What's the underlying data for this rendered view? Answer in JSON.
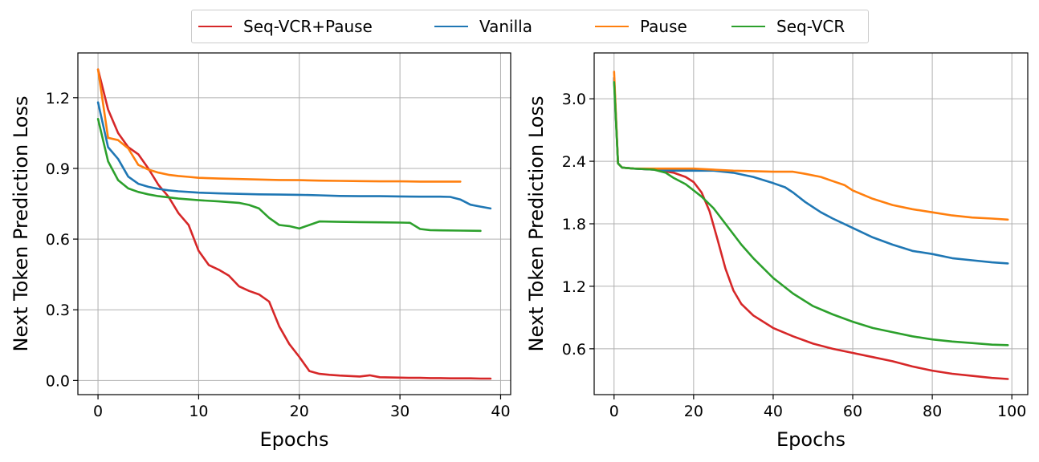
{
  "legend": [
    {
      "label": "Seq-VCR+Pause",
      "color": "#d62728"
    },
    {
      "label": "Vanilla",
      "color": "#1f77b4"
    },
    {
      "label": "Pause",
      "color": "#ff7f0e"
    },
    {
      "label": "Seq-VCR",
      "color": "#2ca02c"
    }
  ],
  "chart_data": [
    {
      "type": "line",
      "xlabel": "Epochs",
      "ylabel": "Next Token Prediction Loss",
      "xlim": [
        -2,
        41
      ],
      "ylim": [
        -0.06,
        1.39
      ],
      "xticks": [
        0,
        10,
        20,
        30,
        40
      ],
      "yticks": [
        0.0,
        0.3,
        0.6,
        0.9,
        1.2
      ],
      "ytick_labels": [
        "0.0",
        "0.3",
        "0.6",
        "0.9",
        "1.2"
      ],
      "grid": true,
      "series": [
        {
          "name": "Seq-VCR+Pause",
          "color": "#d62728",
          "x": [
            0,
            1,
            2,
            3,
            4,
            5,
            6,
            7,
            8,
            9,
            10,
            11,
            12,
            13,
            14,
            15,
            16,
            17,
            18,
            19,
            20,
            21,
            22,
            23,
            24,
            25,
            26,
            27,
            28,
            29,
            30,
            31,
            32,
            33,
            34,
            35,
            36,
            37,
            38,
            39
          ],
          "y": [
            1.32,
            1.15,
            1.05,
            0.99,
            0.96,
            0.9,
            0.83,
            0.78,
            0.71,
            0.66,
            0.55,
            0.49,
            0.47,
            0.445,
            0.4,
            0.38,
            0.365,
            0.335,
            0.23,
            0.155,
            0.1,
            0.04,
            0.028,
            0.024,
            0.021,
            0.019,
            0.017,
            0.022,
            0.014,
            0.013,
            0.012,
            0.011,
            0.011,
            0.01,
            0.01,
            0.009,
            0.009,
            0.009,
            0.008,
            0.008
          ]
        },
        {
          "name": "Vanilla",
          "color": "#1f77b4",
          "x": [
            0,
            1,
            2,
            3,
            4,
            5,
            6,
            7,
            8,
            9,
            10,
            12,
            14,
            16,
            18,
            20,
            22,
            24,
            26,
            28,
            30,
            32,
            34,
            35,
            36,
            37,
            38,
            39
          ],
          "y": [
            1.18,
            0.99,
            0.94,
            0.865,
            0.835,
            0.822,
            0.813,
            0.807,
            0.803,
            0.8,
            0.797,
            0.794,
            0.792,
            0.79,
            0.789,
            0.788,
            0.786,
            0.783,
            0.782,
            0.782,
            0.781,
            0.78,
            0.78,
            0.779,
            0.768,
            0.746,
            0.738,
            0.73
          ]
        },
        {
          "name": "Pause",
          "color": "#ff7f0e",
          "x": [
            0,
            1,
            2,
            3,
            4,
            5,
            6,
            7,
            8,
            9,
            10,
            12,
            14,
            16,
            18,
            20,
            22,
            24,
            26,
            28,
            30,
            32,
            34,
            36
          ],
          "y": [
            1.32,
            1.03,
            1.02,
            0.985,
            0.915,
            0.895,
            0.882,
            0.873,
            0.868,
            0.864,
            0.86,
            0.857,
            0.855,
            0.853,
            0.851,
            0.85,
            0.848,
            0.847,
            0.846,
            0.845,
            0.845,
            0.844,
            0.844,
            0.844
          ]
        },
        {
          "name": "Seq-VCR",
          "color": "#2ca02c",
          "x": [
            0,
            1,
            2,
            3,
            4,
            5,
            6,
            7,
            8,
            10,
            12,
            14,
            15,
            16,
            17,
            18,
            19,
            20,
            21,
            22,
            24,
            26,
            28,
            30,
            31,
            32,
            33,
            34,
            36,
            38
          ],
          "y": [
            1.11,
            0.93,
            0.85,
            0.815,
            0.8,
            0.79,
            0.782,
            0.777,
            0.772,
            0.765,
            0.76,
            0.754,
            0.745,
            0.73,
            0.69,
            0.66,
            0.655,
            0.645,
            0.66,
            0.675,
            0.673,
            0.672,
            0.671,
            0.67,
            0.669,
            0.643,
            0.638,
            0.637,
            0.636,
            0.635
          ]
        }
      ]
    },
    {
      "type": "line",
      "xlabel": "Epochs",
      "ylabel": "Next Token Prediction Loss",
      "xlim": [
        -5,
        104
      ],
      "ylim": [
        0.16,
        3.44
      ],
      "xticks": [
        0,
        20,
        40,
        60,
        80,
        100
      ],
      "yticks": [
        0.6,
        1.2,
        1.8,
        2.4,
        3.0
      ],
      "ytick_labels": [
        "0.6",
        "1.2",
        "1.8",
        "2.4",
        "3.0"
      ],
      "grid": true,
      "series": [
        {
          "name": "Seq-VCR+Pause",
          "color": "#d62728",
          "x": [
            0,
            1,
            2,
            5,
            10,
            15,
            18,
            20,
            22,
            24,
            26,
            28,
            30,
            32,
            35,
            40,
            45,
            50,
            55,
            60,
            65,
            70,
            75,
            80,
            85,
            90,
            95,
            99
          ],
          "y": [
            3.2,
            2.38,
            2.34,
            2.33,
            2.32,
            2.29,
            2.25,
            2.2,
            2.1,
            1.92,
            1.65,
            1.37,
            1.16,
            1.03,
            0.92,
            0.8,
            0.72,
            0.65,
            0.6,
            0.56,
            0.52,
            0.48,
            0.43,
            0.39,
            0.36,
            0.34,
            0.32,
            0.31
          ]
        },
        {
          "name": "Vanilla",
          "color": "#1f77b4",
          "x": [
            0,
            1,
            2,
            5,
            10,
            15,
            20,
            25,
            30,
            35,
            40,
            43,
            45,
            48,
            52,
            55,
            60,
            65,
            70,
            75,
            80,
            85,
            90,
            95,
            99
          ],
          "y": [
            3.2,
            2.38,
            2.34,
            2.33,
            2.32,
            2.31,
            2.31,
            2.31,
            2.29,
            2.25,
            2.19,
            2.15,
            2.1,
            2.01,
            1.91,
            1.85,
            1.76,
            1.67,
            1.6,
            1.54,
            1.51,
            1.47,
            1.45,
            1.43,
            1.42
          ]
        },
        {
          "name": "Pause",
          "color": "#ff7f0e",
          "x": [
            0,
            1,
            2,
            5,
            10,
            20,
            30,
            40,
            45,
            48,
            52,
            55,
            58,
            60,
            65,
            70,
            75,
            80,
            85,
            90,
            95,
            99
          ],
          "y": [
            3.26,
            2.38,
            2.34,
            2.33,
            2.33,
            2.33,
            2.31,
            2.3,
            2.3,
            2.28,
            2.25,
            2.21,
            2.17,
            2.12,
            2.04,
            1.98,
            1.94,
            1.91,
            1.88,
            1.86,
            1.85,
            1.84
          ]
        },
        {
          "name": "Seq-VCR",
          "color": "#2ca02c",
          "x": [
            0,
            1,
            2,
            5,
            10,
            13,
            15,
            18,
            20,
            22,
            25,
            28,
            30,
            32,
            35,
            40,
            45,
            50,
            55,
            60,
            65,
            70,
            75,
            80,
            85,
            90,
            95,
            99
          ],
          "y": [
            3.16,
            2.38,
            2.34,
            2.33,
            2.32,
            2.29,
            2.24,
            2.18,
            2.12,
            2.06,
            1.95,
            1.8,
            1.7,
            1.6,
            1.47,
            1.28,
            1.13,
            1.01,
            0.93,
            0.86,
            0.8,
            0.76,
            0.72,
            0.69,
            0.67,
            0.655,
            0.64,
            0.635
          ]
        }
      ]
    }
  ]
}
